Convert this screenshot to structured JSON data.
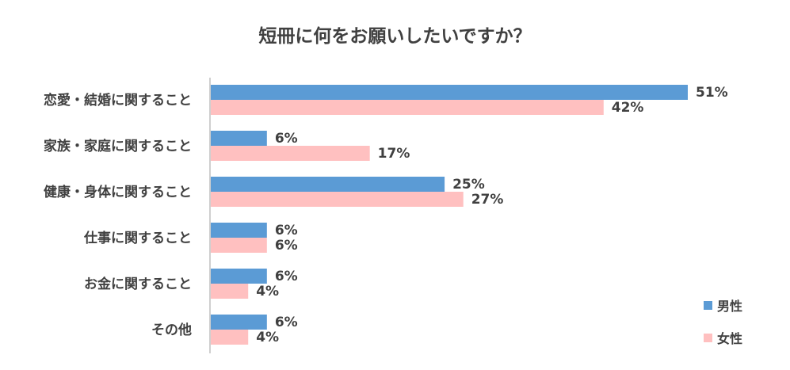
{
  "chart_data": {
    "type": "bar",
    "orientation": "horizontal",
    "title": "短冊に何をお願いしたいですか？",
    "categories": [
      "恋愛・結婚に関すること",
      "家族・家庭に関すること",
      "健康・身体に関すること",
      "仕事に関すること",
      "お金に関すること",
      "その他"
    ],
    "series": [
      {
        "name": "男性",
        "values": [
          51,
          6,
          25,
          6,
          6,
          6
        ],
        "labels": [
          "51%",
          "6%",
          "25%",
          "6%",
          "6%",
          "6%"
        ],
        "color": "#5b9bd5"
      },
      {
        "name": "女性",
        "values": [
          42,
          17,
          27,
          6,
          4,
          4
        ],
        "labels": [
          "42%",
          "17%",
          "27%",
          "6%",
          "4%",
          "4%"
        ],
        "color": "#ffc0c0"
      }
    ],
    "value_unit": "%",
    "xlim": [
      0,
      51
    ],
    "grid": false,
    "legend_position": "bottom-right"
  }
}
